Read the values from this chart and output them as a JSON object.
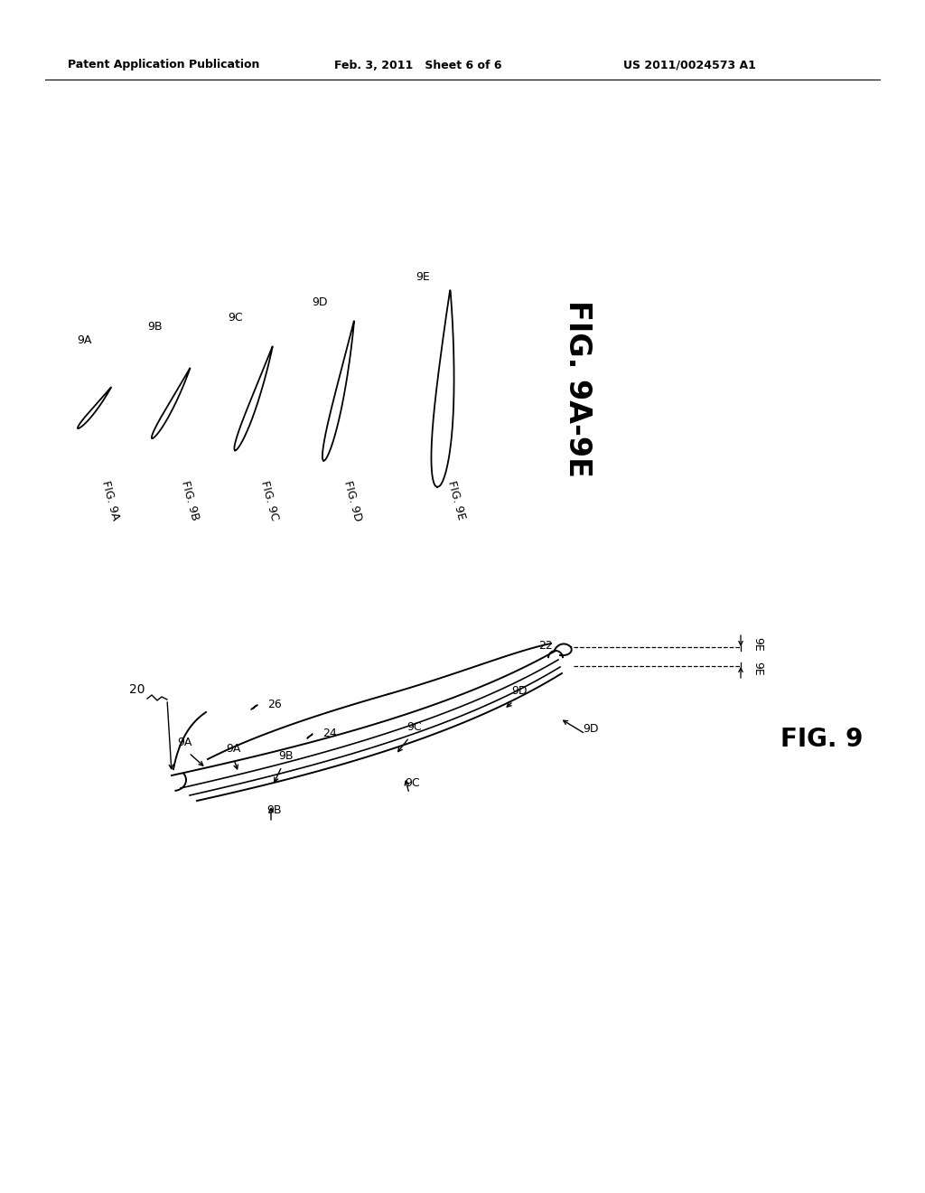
{
  "background_color": "#ffffff",
  "header_left": "Patent Application Publication",
  "header_mid": "Feb. 3, 2011   Sheet 6 of 6",
  "header_right": "US 2011/0024573 A1",
  "line_color": "#000000"
}
